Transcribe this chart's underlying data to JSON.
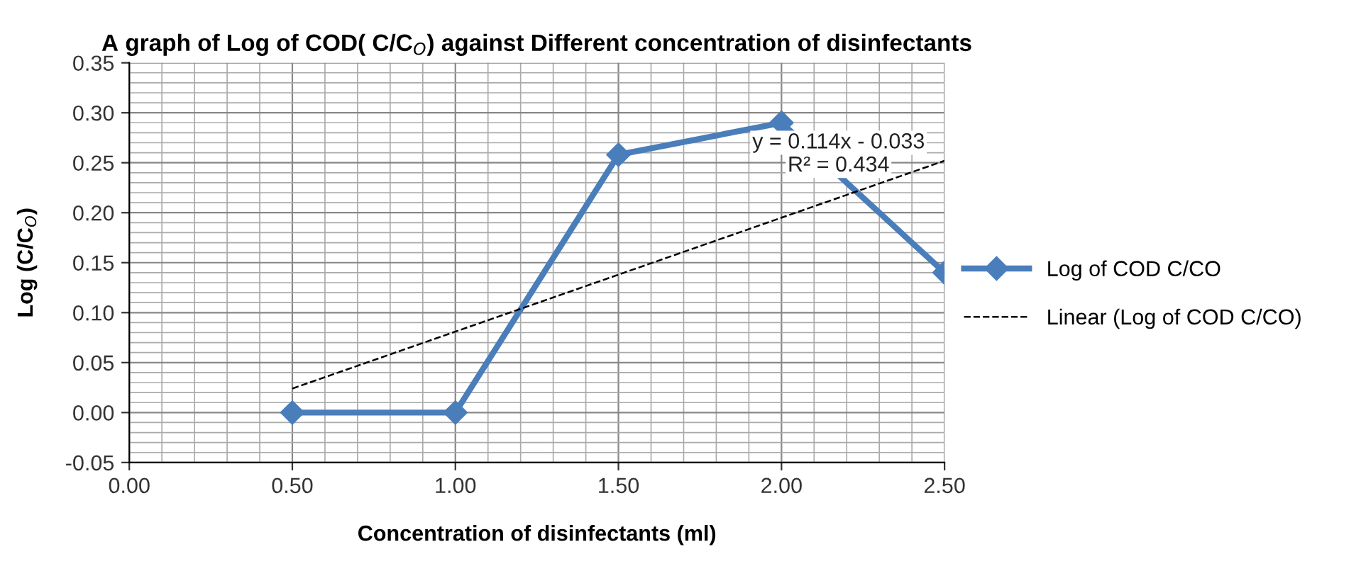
{
  "chart_data": {
    "type": "line",
    "title": "A graph of Log of COD( C/C$_{O}$) against Different concentration of disinfectants",
    "xlabel": "Concentration of disinfectants (ml)",
    "ylabel": "Log (C/C$_{O}$)",
    "x": [
      0.5,
      1.0,
      1.5,
      2.0,
      2.5
    ],
    "series": [
      {
        "name": "Log of COD C/CO",
        "color": "#4a7ebb",
        "values": [
          0.0,
          0.0,
          0.258,
          0.29,
          0.14
        ],
        "marker": "diamond",
        "line_style": "solid"
      },
      {
        "name": "Linear (Log of COD C/CO)",
        "color": "#000000",
        "x": [
          0.5,
          2.5
        ],
        "values": [
          0.024,
          0.252
        ],
        "marker": "none",
        "line_style": "dashed"
      }
    ],
    "xlim": [
      0,
      2.5
    ],
    "ylim": [
      -0.05,
      0.35
    ],
    "xticks": [
      {
        "value": 0,
        "label": "0.00"
      },
      {
        "value": 0.5,
        "label": "0.50"
      },
      {
        "value": 1.0,
        "label": "1.00"
      },
      {
        "value": 1.5,
        "label": "1.50"
      },
      {
        "value": 2.0,
        "label": "2.00"
      },
      {
        "value": 2.5,
        "label": "2.50"
      }
    ],
    "yticks": [
      {
        "value": -0.05,
        "label": "-0.05"
      },
      {
        "value": 0,
        "label": "0.00"
      },
      {
        "value": 0.05,
        "label": "0.05"
      },
      {
        "value": 0.1,
        "label": "0.10"
      },
      {
        "value": 0.15,
        "label": "0.15"
      },
      {
        "value": 0.2,
        "label": "0.20"
      },
      {
        "value": 0.25,
        "label": "0.25"
      },
      {
        "value": 0.3,
        "label": "0.30"
      },
      {
        "value": 0.35,
        "label": "0.35"
      }
    ],
    "annotations": [
      "y = 0.114x - 0.033",
      "R² = 0.434"
    ],
    "grid": true,
    "legend": "right"
  }
}
